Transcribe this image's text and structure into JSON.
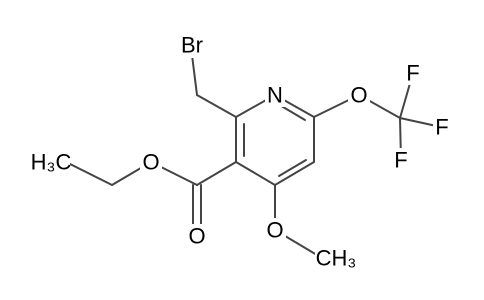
{
  "atoms": {
    "bromine": "Br",
    "nitrogen": "N",
    "ether_oxygen": "O",
    "fluorine_top": "F",
    "fluorine_right": "F",
    "fluorine_bottom": "F",
    "ester_oxygen": "O",
    "carbonyl_oxygen": "O",
    "methoxy_oxygen": "O",
    "ethyl_methyl": "H₃C",
    "methoxy_methyl": "CH₃"
  }
}
